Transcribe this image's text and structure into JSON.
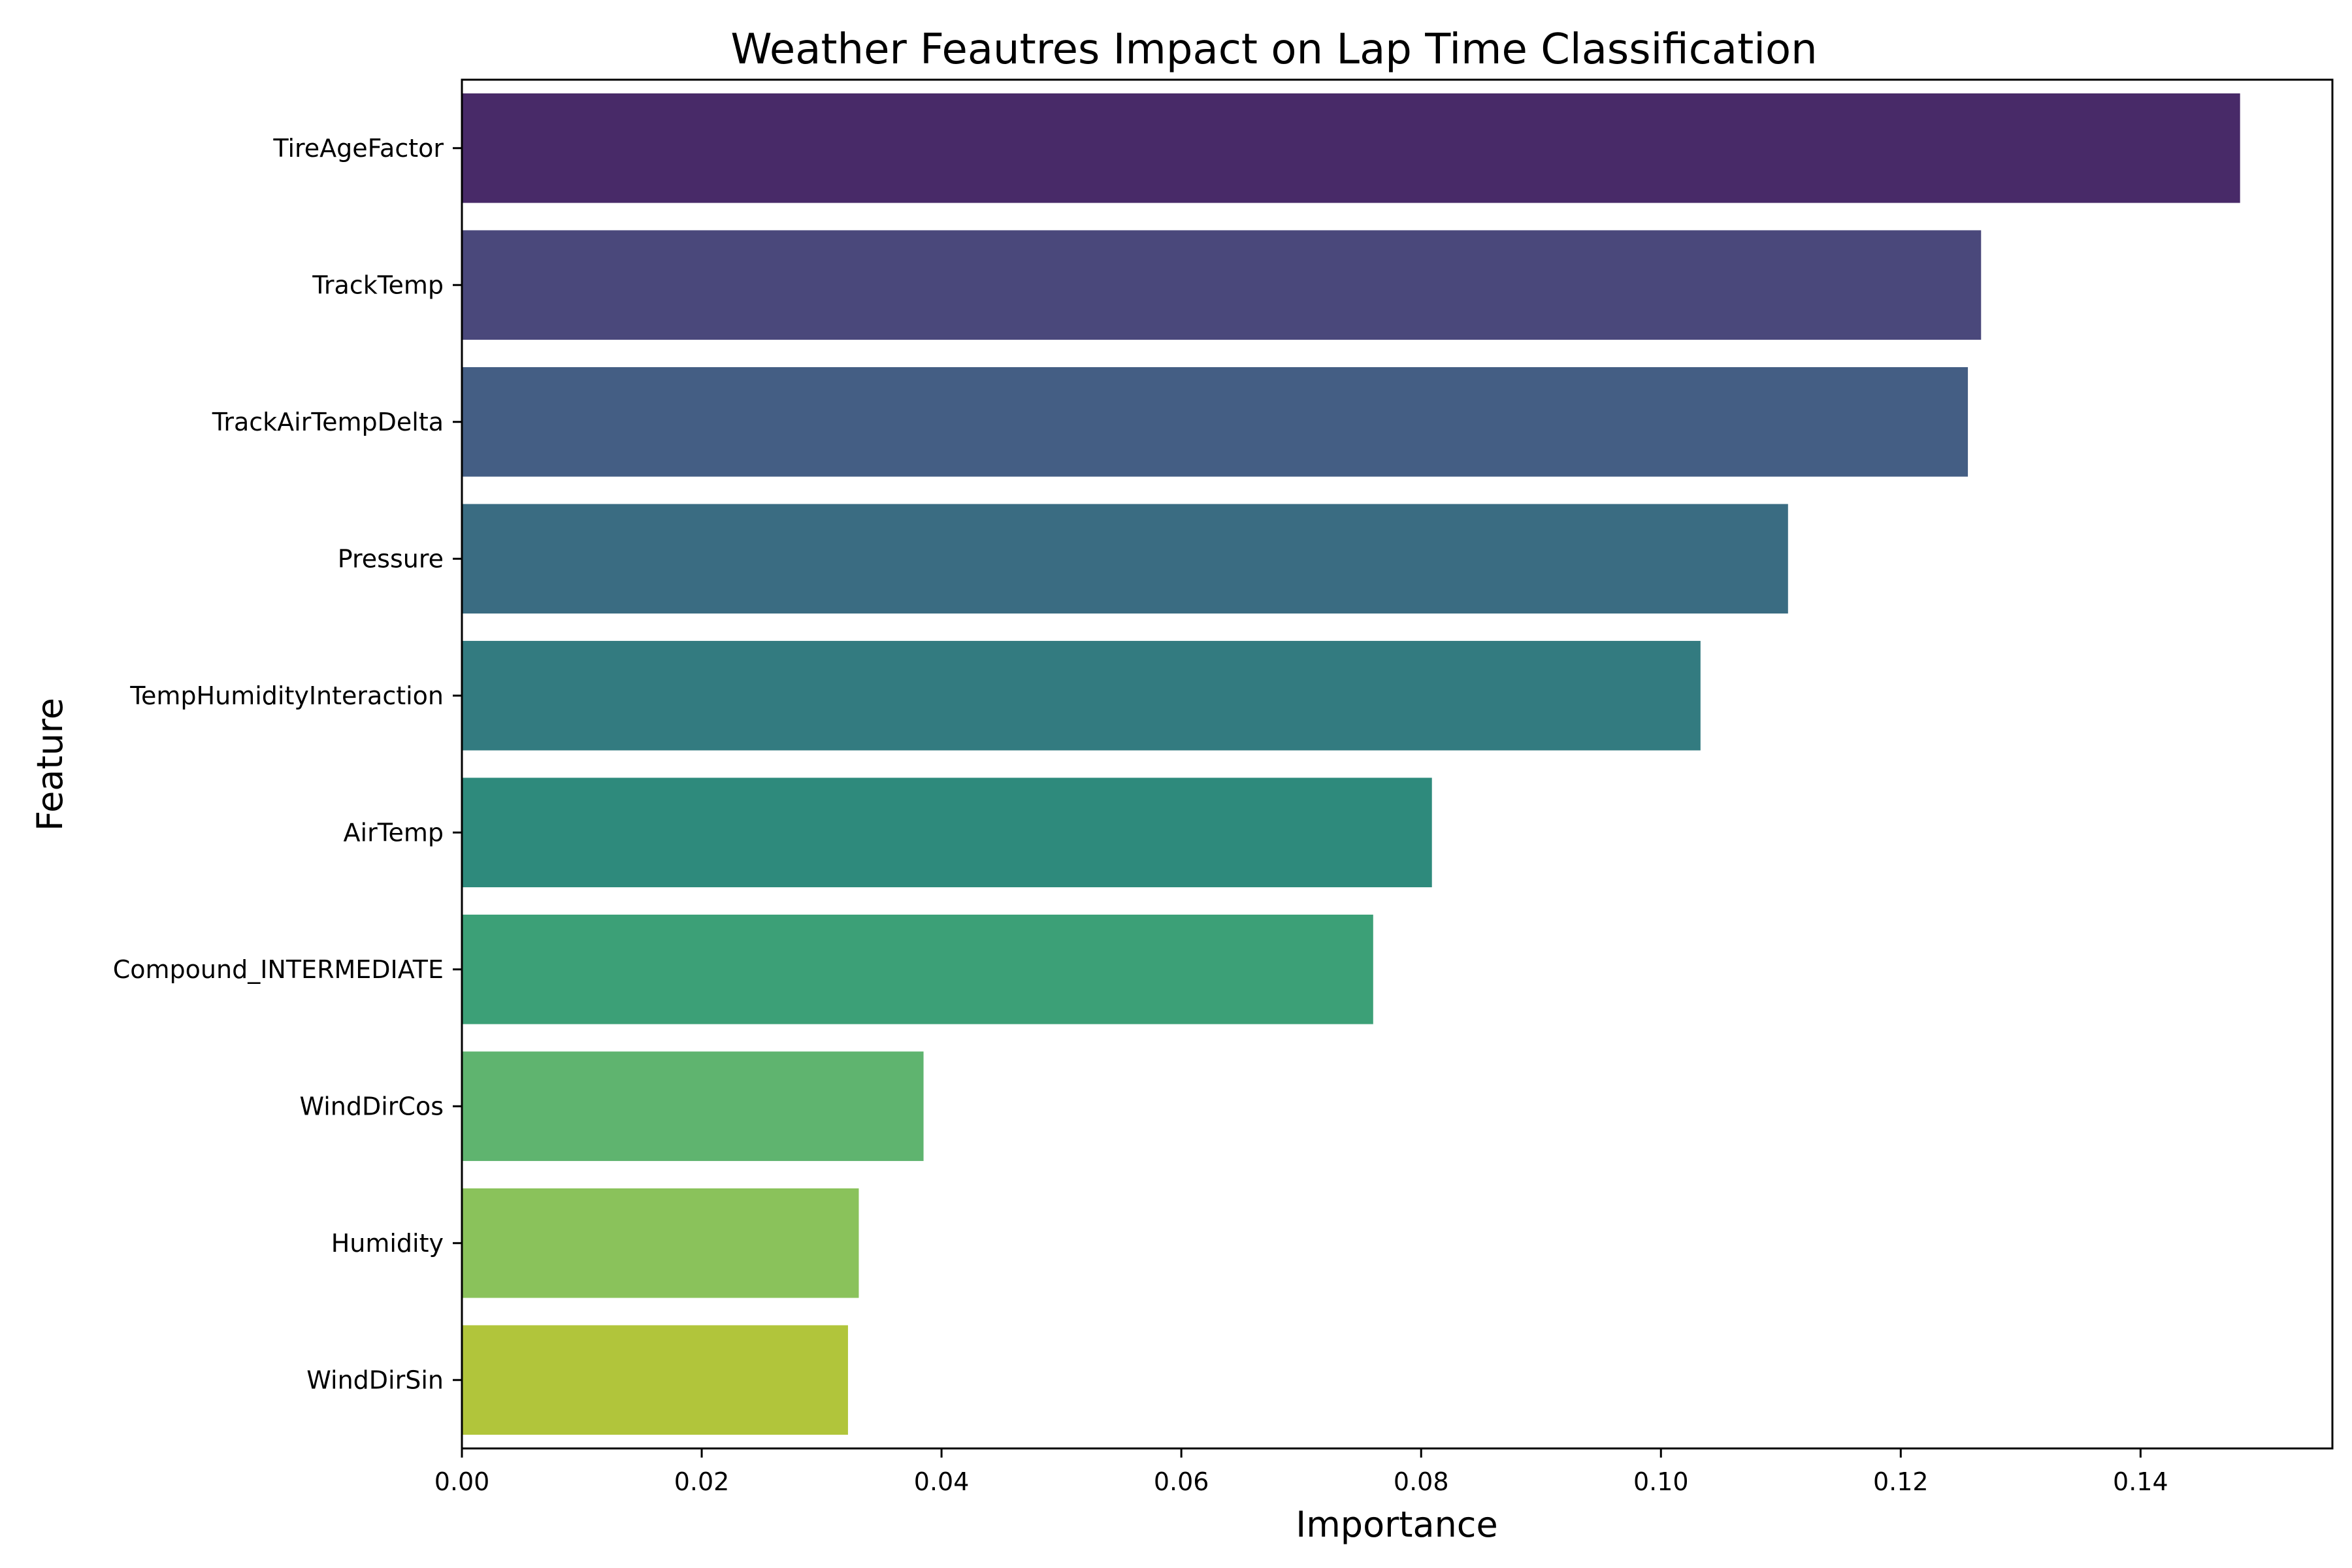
{
  "chart_data": {
    "type": "bar",
    "orientation": "horizontal",
    "title": "Weather Feautres Impact on Lap Time Classification",
    "xlabel": "Importance",
    "ylabel": "Feature",
    "xlim": [
      0,
      0.156
    ],
    "xticks": [
      0.0,
      0.02,
      0.04,
      0.06,
      0.08,
      0.1,
      0.12,
      0.14
    ],
    "xtick_labels": [
      "0.00",
      "0.02",
      "0.04",
      "0.06",
      "0.08",
      "0.10",
      "0.12",
      "0.14"
    ],
    "grid": false,
    "categories": [
      "TireAgeFactor",
      "TrackTemp",
      "TrackAirTempDelta",
      "Pressure",
      "TempHumidityInteraction",
      "AirTemp",
      "Compound_INTERMEDIATE",
      "WindDirCos",
      "Humidity",
      "WindDirSin"
    ],
    "values": [
      0.1483,
      0.1267,
      0.1256,
      0.1106,
      0.1033,
      0.0809,
      0.076,
      0.0385,
      0.0331,
      0.0322
    ],
    "colors": [
      "#482a68",
      "#4a487b",
      "#445e84",
      "#3a6c82",
      "#337b80",
      "#2e8a7c",
      "#3ca077",
      "#5fb46f",
      "#8ac25b",
      "#b1c53b"
    ]
  }
}
